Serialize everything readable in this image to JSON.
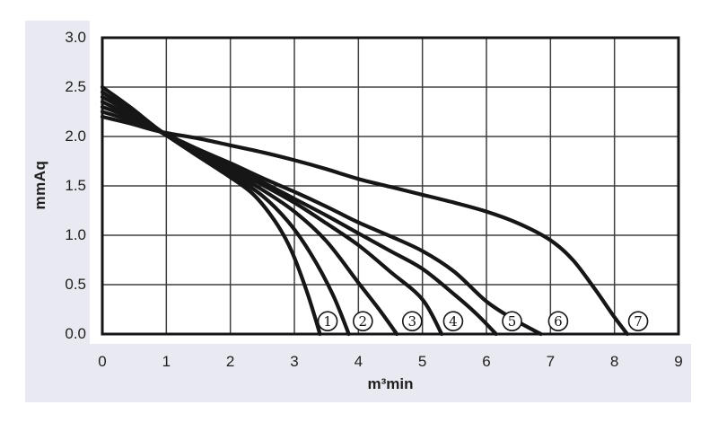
{
  "colors": {
    "background": "#ffffff",
    "axis_band": "#e9e9f1",
    "grid": "#3f3f3f",
    "plot_border": "#161616",
    "curve": "#161616",
    "text": "#1f1f1f",
    "label_circle_fill": "#ffffff"
  },
  "chart_data": {
    "type": "line",
    "title": "",
    "xlabel": "m³min",
    "ylabel": "mmAq",
    "xlim": [
      0,
      9
    ],
    "ylim": [
      0,
      3
    ],
    "x_ticks": [
      "0",
      "1",
      "2",
      "3",
      "4",
      "5",
      "6",
      "7",
      "8",
      "9"
    ],
    "y_ticks": [
      "3.0",
      "2.5",
      "2.0",
      "1.5",
      "1.0",
      "0.5",
      "0.0"
    ],
    "grid": true,
    "legend_position": "none",
    "series": [
      {
        "name": "1",
        "points": [
          [
            0,
            2.5
          ],
          [
            0.45,
            2.29
          ],
          [
            0.9,
            2.06
          ],
          [
            1.4,
            1.84
          ],
          [
            1.9,
            1.63
          ],
          [
            2.35,
            1.42
          ],
          [
            2.7,
            1.14
          ],
          [
            2.95,
            0.85
          ],
          [
            3.2,
            0.42
          ],
          [
            3.4,
            0.0
          ]
        ]
      },
      {
        "name": "2",
        "points": [
          [
            0,
            2.45
          ],
          [
            0.45,
            2.26
          ],
          [
            0.9,
            2.06
          ],
          [
            1.5,
            1.81
          ],
          [
            2.0,
            1.62
          ],
          [
            2.5,
            1.4
          ],
          [
            2.9,
            1.14
          ],
          [
            3.25,
            0.82
          ],
          [
            3.6,
            0.4
          ],
          [
            3.85,
            0.0
          ]
        ]
      },
      {
        "name": "3",
        "points": [
          [
            0,
            2.4
          ],
          [
            0.45,
            2.24
          ],
          [
            0.9,
            2.05
          ],
          [
            1.5,
            1.82
          ],
          [
            2.0,
            1.65
          ],
          [
            2.5,
            1.46
          ],
          [
            3.0,
            1.24
          ],
          [
            3.5,
            0.94
          ],
          [
            4.0,
            0.52
          ],
          [
            4.3,
            0.27
          ],
          [
            4.6,
            0.0
          ]
        ]
      },
      {
        "name": "4",
        "points": [
          [
            0,
            2.35
          ],
          [
            0.45,
            2.21
          ],
          [
            0.9,
            2.05
          ],
          [
            1.5,
            1.84
          ],
          [
            2.0,
            1.68
          ],
          [
            2.5,
            1.51
          ],
          [
            3.0,
            1.33
          ],
          [
            3.5,
            1.12
          ],
          [
            4.0,
            0.9
          ],
          [
            4.5,
            0.63
          ],
          [
            5.0,
            0.35
          ],
          [
            5.3,
            0.0
          ]
        ]
      },
      {
        "name": "5",
        "points": [
          [
            0,
            2.3
          ],
          [
            0.45,
            2.19
          ],
          [
            0.9,
            2.05
          ],
          [
            1.5,
            1.85
          ],
          [
            2.0,
            1.7
          ],
          [
            2.5,
            1.54
          ],
          [
            3.0,
            1.37
          ],
          [
            3.5,
            1.2
          ],
          [
            4.0,
            1.02
          ],
          [
            4.5,
            0.84
          ],
          [
            5.0,
            0.66
          ],
          [
            5.5,
            0.4
          ],
          [
            5.85,
            0.2
          ],
          [
            6.15,
            0.0
          ]
        ]
      },
      {
        "name": "6",
        "points": [
          [
            0,
            2.25
          ],
          [
            0.45,
            2.16
          ],
          [
            0.9,
            2.05
          ],
          [
            1.5,
            1.87
          ],
          [
            2.0,
            1.73
          ],
          [
            2.5,
            1.58
          ],
          [
            3.0,
            1.44
          ],
          [
            3.5,
            1.29
          ],
          [
            4.0,
            1.13
          ],
          [
            4.5,
            0.99
          ],
          [
            5.0,
            0.84
          ],
          [
            5.5,
            0.63
          ],
          [
            6.0,
            0.33
          ],
          [
            6.45,
            0.14
          ],
          [
            6.85,
            0.0
          ]
        ]
      },
      {
        "name": "7",
        "points": [
          [
            0,
            2.2
          ],
          [
            0.45,
            2.13
          ],
          [
            0.9,
            2.05
          ],
          [
            1.5,
            1.98
          ],
          [
            2.0,
            1.91
          ],
          [
            2.5,
            1.84
          ],
          [
            3.0,
            1.76
          ],
          [
            3.5,
            1.67
          ],
          [
            4.0,
            1.57
          ],
          [
            4.5,
            1.49
          ],
          [
            5.0,
            1.41
          ],
          [
            5.5,
            1.33
          ],
          [
            6.0,
            1.24
          ],
          [
            6.5,
            1.12
          ],
          [
            7.0,
            0.95
          ],
          [
            7.35,
            0.75
          ],
          [
            7.7,
            0.45
          ],
          [
            8.0,
            0.17
          ],
          [
            8.2,
            0.0
          ]
        ]
      }
    ],
    "curve_labels": [
      {
        "text": "1",
        "x": 3.52,
        "y": 0.13
      },
      {
        "text": "2",
        "x": 4.07,
        "y": 0.13
      },
      {
        "text": "3",
        "x": 4.84,
        "y": 0.13
      },
      {
        "text": "4",
        "x": 5.48,
        "y": 0.13
      },
      {
        "text": "5",
        "x": 6.4,
        "y": 0.13
      },
      {
        "text": "6",
        "x": 7.12,
        "y": 0.13
      },
      {
        "text": "7",
        "x": 8.37,
        "y": 0.13
      }
    ]
  }
}
